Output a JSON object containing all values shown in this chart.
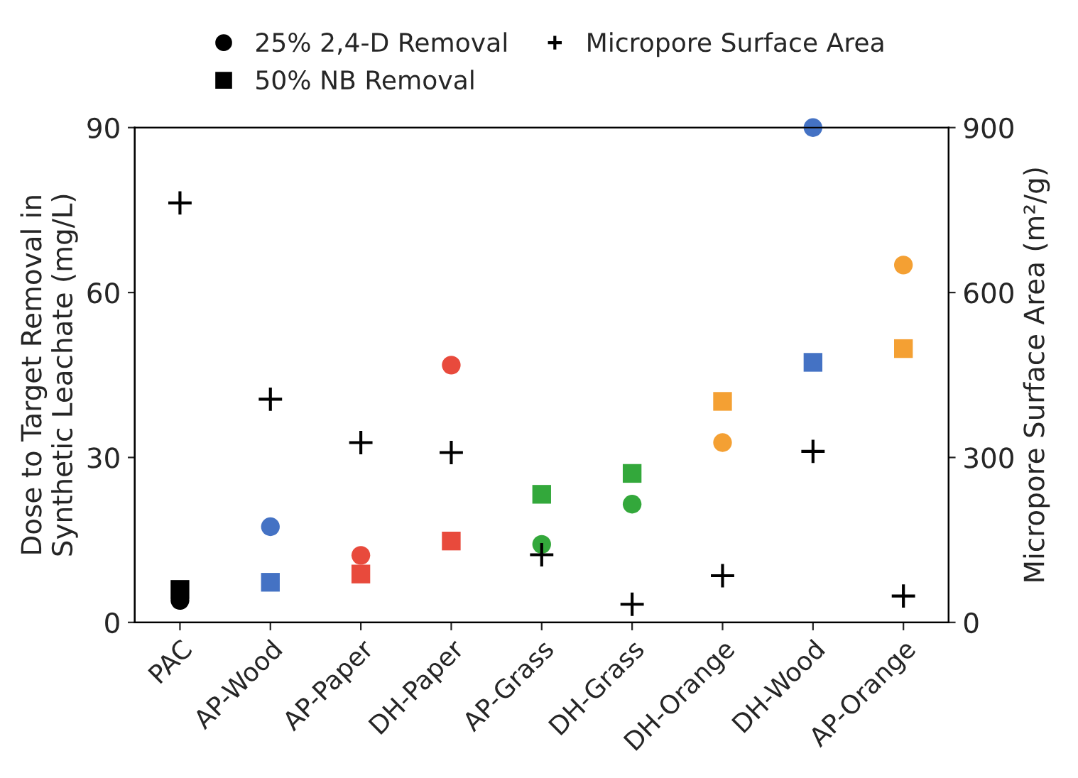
{
  "chart_data": {
    "type": "scatter",
    "categories": [
      "PAC",
      "AP-Wood",
      "AP-Paper",
      "DH-Paper",
      "AP-Grass",
      "DH-Grass",
      "DH-Orange",
      "DH-Wood",
      "AP-Orange"
    ],
    "series": [
      {
        "name": "25% 2,4-D Removal",
        "marker": "circle",
        "colors": [
          "#000000",
          "#4472c4",
          "#e84a3c",
          "#e84a3c",
          "#33a83b",
          "#33a83b",
          "#f4a033",
          "#4472c4",
          "#f4a033"
        ],
        "values": [
          4,
          17.4,
          12.2,
          46.8,
          14.2,
          21.5,
          32.7,
          90,
          65.0
        ]
      },
      {
        "name": "50% NB Removal",
        "marker": "square",
        "colors": [
          "#000000",
          "#4472c4",
          "#e84a3c",
          "#e84a3c",
          "#33a83b",
          "#33a83b",
          "#f4a033",
          "#4472c4",
          "#f4a033"
        ],
        "values": [
          6,
          7.3,
          8.8,
          14.8,
          23.3,
          27.1,
          40.2,
          47.3,
          49.8
        ]
      },
      {
        "name": "Micropore Surface Area",
        "marker": "cross",
        "axis": "y2",
        "color": "#000000",
        "values": [
          763,
          406,
          327,
          309,
          123,
          33,
          85,
          311,
          48
        ]
      }
    ],
    "ylabel": "Dose to Target Removal in\nSynthetic Leachate (mg/L)",
    "y2label": "Micropore Surface Area (m²/g)",
    "ylim": [
      0,
      90
    ],
    "yticks": [
      0,
      30,
      60,
      90
    ],
    "y2lim": [
      0,
      900
    ],
    "y2ticks": [
      0,
      300,
      600,
      900
    ],
    "legend": "top",
    "grid": false
  }
}
